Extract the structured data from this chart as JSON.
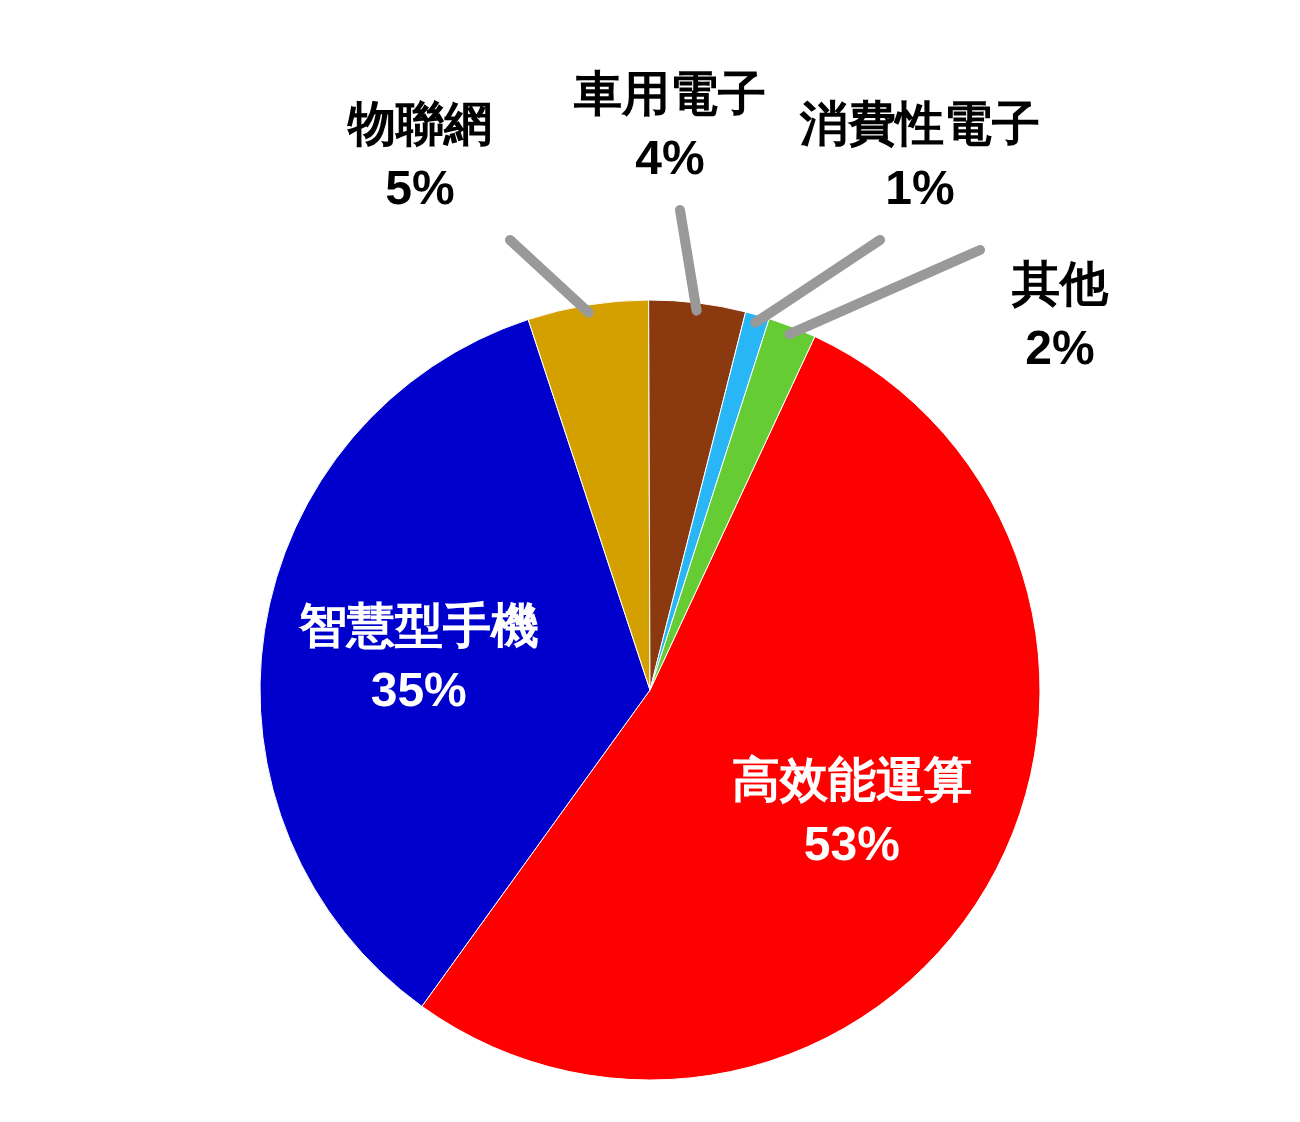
{
  "chart_data": {
    "type": "pie",
    "categories": [
      "高效能運算",
      "智慧型手機",
      "物聯網",
      "車用電子",
      "消費性電子",
      "其他"
    ],
    "values": [
      53,
      35,
      5,
      4,
      1,
      2
    ],
    "colors": [
      "#ff0000",
      "#0000cc",
      "#d4a000",
      "#8b3a0f",
      "#29b6f6",
      "#66cc33"
    ],
    "value_labels": [
      "53%",
      "35%",
      "5%",
      "4%",
      "1%",
      "2%"
    ]
  }
}
